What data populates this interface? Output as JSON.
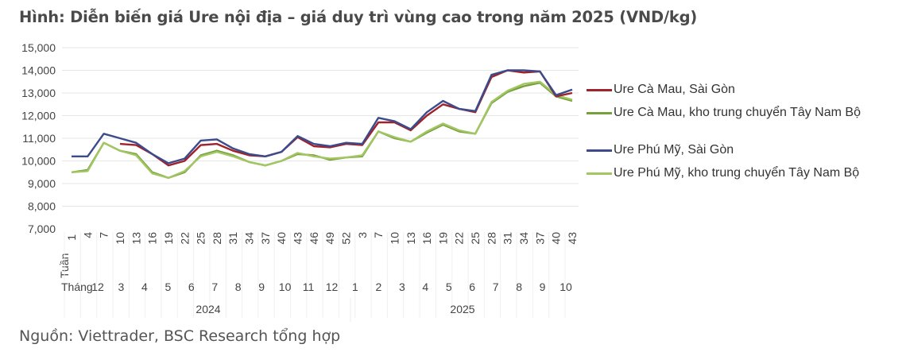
{
  "title": "Hình: Diễn biến giá Ure nội địa – giá duy trì vùng cao trong năm 2025 (VND/kg)",
  "source": "Nguồn: Viettrader, BSC Research tổng hợp",
  "chart_data": {
    "type": "line",
    "title": "Hình: Diễn biến giá Ure nội địa – giá duy trì vùng cao trong năm 2025 (VND/kg)",
    "ylim": [
      7000,
      15000
    ],
    "yticks": [
      "7,000",
      "8,000",
      "9,000",
      "10,000",
      "11,000",
      "12,000",
      "13,000",
      "14,000",
      "15,000"
    ],
    "ytick_values": [
      7000,
      8000,
      9000,
      10000,
      11000,
      12000,
      13000,
      14000,
      15000
    ],
    "week_label": "Tuần",
    "month_label": "Tháng",
    "x": [
      "1",
      "4",
      "7",
      "10",
      "13",
      "16",
      "19",
      "22",
      "25",
      "28",
      "31",
      "34",
      "37",
      "40",
      "43",
      "46",
      "49",
      "52",
      "3",
      "7",
      "10",
      "13",
      "16",
      "19",
      "22",
      "25",
      "28",
      "31",
      "34",
      "37",
      "40",
      "43"
    ],
    "months": [
      "12",
      "3",
      "4",
      "5",
      "6",
      "7",
      "8",
      "9",
      "10",
      "11",
      "12",
      "1",
      "2",
      "3",
      "4",
      "5",
      "6",
      "7",
      "8",
      "9",
      "10"
    ],
    "years": [
      "2024",
      "2025"
    ],
    "legend_position": "right",
    "grid": true,
    "series": [
      {
        "name": "Ure Cà Mau, Sài Gòn",
        "color": "#a0222a",
        "values": [
          null,
          null,
          null,
          10750,
          10700,
          10300,
          9800,
          10000,
          10700,
          10750,
          10450,
          10250,
          10200,
          10400,
          11050,
          10650,
          10600,
          10750,
          10700,
          11700,
          11700,
          11350,
          12000,
          12500,
          12300,
          12150,
          13700,
          14000,
          13900,
          13950,
          12850,
          13000
        ]
      },
      {
        "name": "Ure Cà Mau, kho trung chuyển Tây Nam Bộ",
        "color": "#76a03c",
        "values": [
          9500,
          9600,
          10800,
          10450,
          10300,
          9500,
          9250,
          9500,
          10250,
          10450,
          10250,
          9950,
          9800,
          10000,
          10300,
          10250,
          10050,
          10150,
          10200,
          11300,
          11000,
          10850,
          11250,
          11600,
          11300,
          11200,
          12550,
          13050,
          13300,
          13450,
          12850,
          12650
        ]
      },
      {
        "name": "Ure Phú Mỹ, Sài Gòn",
        "color": "#3b4b8c",
        "values": [
          10200,
          10200,
          11200,
          11000,
          10800,
          10300,
          9900,
          10100,
          10900,
          10950,
          10550,
          10300,
          10200,
          10400,
          11100,
          10750,
          10650,
          10800,
          10750,
          11900,
          11750,
          11400,
          12150,
          12650,
          12300,
          12200,
          13800,
          14000,
          14000,
          13950,
          12900,
          13150
        ]
      },
      {
        "name": "Ure Phú Mỹ, kho trung chuyển Tây Nam Bộ",
        "color": "#a2c662",
        "values": [
          9500,
          9550,
          10800,
          10450,
          10250,
          9450,
          9250,
          9550,
          10200,
          10400,
          10200,
          9950,
          9800,
          10000,
          10350,
          10200,
          10100,
          10150,
          10250,
          11300,
          11050,
          10850,
          11300,
          11650,
          11350,
          11200,
          12600,
          13100,
          13400,
          13500,
          12900,
          12700
        ]
      }
    ]
  }
}
